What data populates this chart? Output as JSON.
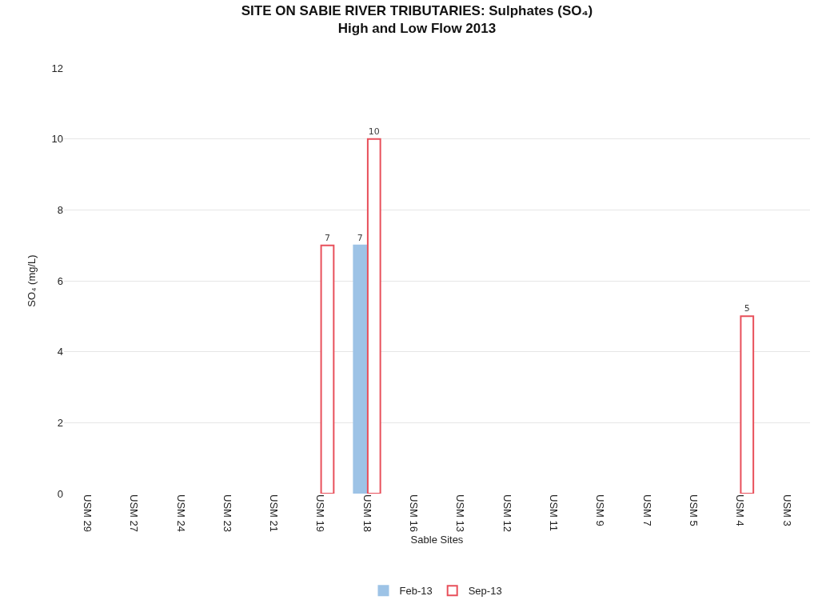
{
  "chart_data": {
    "type": "bar",
    "title": "SITE ON SABIE RIVER TRIBUTARIES: Sulphates (SO₄)",
    "subtitle": "High and Low Flow 2013",
    "xlabel": "Sable Sites",
    "ylabel": "SO₄ (mg/L)",
    "categories": [
      "USM 29",
      "USM 27",
      "USM 24",
      "USM 23",
      "USM 21",
      "USM 19",
      "USM 18",
      "USM 16",
      "USM 13",
      "USM 12",
      "USM 11",
      "USM 9",
      "USM 7",
      "USM 5",
      "USM 4",
      "USM 3"
    ],
    "series": [
      {
        "name": "Feb-13",
        "color": "#9dc3e6",
        "values": [
          null,
          null,
          null,
          null,
          null,
          null,
          7,
          null,
          null,
          null,
          null,
          null,
          null,
          null,
          null,
          null
        ]
      },
      {
        "name": "Sep-13",
        "color": "#e8505b",
        "values": [
          null,
          null,
          null,
          null,
          null,
          7,
          10,
          null,
          null,
          null,
          null,
          null,
          null,
          null,
          5,
          null
        ]
      }
    ],
    "ylim": [
      0,
      12
    ],
    "yticks": [
      0,
      2,
      4,
      6,
      8,
      10,
      12
    ],
    "grid": "y",
    "legend": "bottom",
    "data_labels": true
  }
}
